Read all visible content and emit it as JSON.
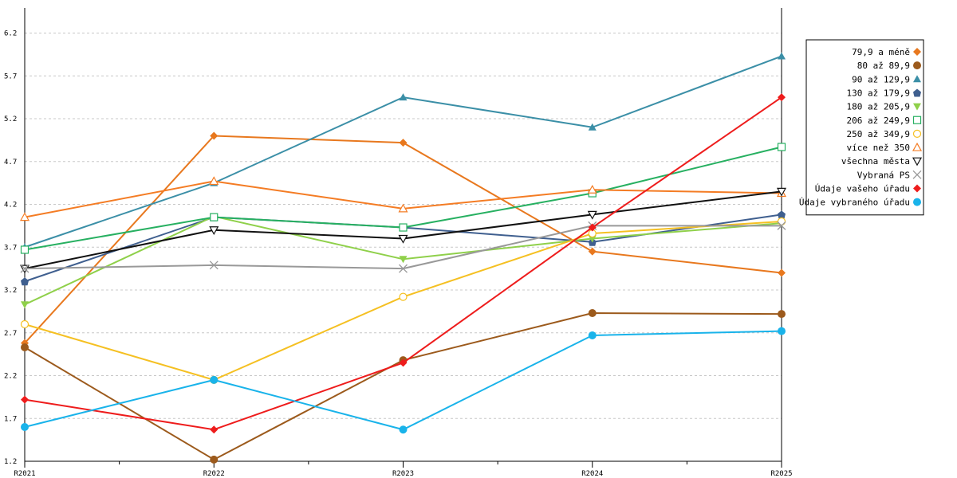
{
  "chart_data": {
    "type": "line",
    "categories": [
      "R2021",
      "R2022",
      "R2023",
      "R2024",
      "R2025"
    ],
    "ylim": [
      1.2,
      6.2
    ],
    "yticks": [
      "1.2",
      "1.7",
      "2.2",
      "2.7",
      "3.2",
      "3.7",
      "4.2",
      "4.7",
      "5.2",
      "5.7",
      "6.2"
    ],
    "grid": true,
    "legend_position": "right",
    "series": [
      {
        "name": "79,9 a méně",
        "color": "#e8781e",
        "marker": "diamond",
        "values": [
          2.58,
          5.0,
          4.92,
          3.65,
          3.4
        ]
      },
      {
        "name": "80 až 89,9",
        "color": "#9c5a1c",
        "marker": "circle",
        "values": [
          2.53,
          1.22,
          2.38,
          2.93,
          2.92
        ]
      },
      {
        "name": "90 až 129,9",
        "color": "#3b8fa7",
        "marker": "triangle-up",
        "values": [
          3.7,
          4.45,
          5.45,
          5.1,
          5.93
        ]
      },
      {
        "name": "130 až 179,9",
        "color": "#3f5f8f",
        "marker": "pentagon",
        "values": [
          3.3,
          4.05,
          3.93,
          3.76,
          4.08
        ]
      },
      {
        "name": "180 až 205,9",
        "color": "#8fd04a",
        "marker": "triangle-down",
        "values": [
          3.03,
          4.06,
          3.56,
          3.8,
          3.98
        ]
      },
      {
        "name": "206 až 249,9",
        "color": "#27b061",
        "marker": "square-open",
        "values": [
          3.67,
          4.05,
          3.93,
          4.33,
          4.87
        ]
      },
      {
        "name": "250 až 349,9",
        "color": "#f5c022",
        "marker": "circle-open",
        "values": [
          2.8,
          2.15,
          3.12,
          3.86,
          4.0
        ]
      },
      {
        "name": "více než 350",
        "color": "#f47c24",
        "marker": "triangle-up-open",
        "values": [
          4.05,
          4.47,
          4.15,
          4.37,
          4.33
        ]
      },
      {
        "name": "všechna města",
        "color": "#111111",
        "marker": "triangle-down-open",
        "values": [
          3.45,
          3.9,
          3.8,
          4.08,
          4.35
        ]
      },
      {
        "name": "Vybraná PS",
        "color": "#999999",
        "marker": "x",
        "values": [
          3.45,
          3.49,
          3.45,
          3.95,
          3.95
        ]
      },
      {
        "name": "Údaje vašeho úřadu",
        "color": "#ee1c1c",
        "marker": "diamond",
        "values": [
          1.92,
          1.57,
          2.35,
          3.93,
          5.45
        ]
      },
      {
        "name": "Údaje vybraného úřadu",
        "color": "#19b3ea",
        "marker": "circle",
        "values": [
          1.6,
          2.15,
          1.57,
          2.67,
          2.72
        ]
      }
    ]
  }
}
